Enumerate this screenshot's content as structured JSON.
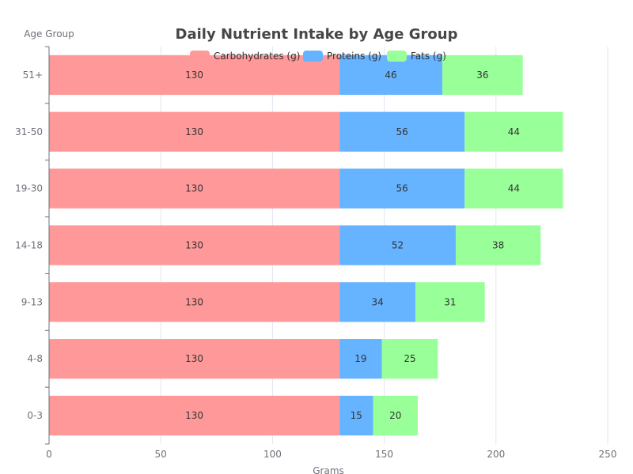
{
  "chart_data": {
    "type": "bar",
    "orientation": "horizontal",
    "stacked": true,
    "title": "Daily Nutrient Intake by Age Group",
    "xlabel": "Grams",
    "ylabel": "Age Group",
    "xlim": [
      0,
      250
    ],
    "xticks": [
      0,
      50,
      100,
      150,
      200,
      250
    ],
    "categories": [
      "0-3",
      "4-8",
      "9-13",
      "14-18",
      "19-30",
      "31-50",
      "51+"
    ],
    "series": [
      {
        "name": "Carbohydrates (g)",
        "color": "#ff9999",
        "values": [
          130,
          130,
          130,
          130,
          130,
          130,
          130
        ]
      },
      {
        "name": "Proteins (g)",
        "color": "#66b3ff",
        "values": [
          15,
          19,
          34,
          52,
          56,
          56,
          46
        ]
      },
      {
        "name": "Fats (g)",
        "color": "#99ff99",
        "values": [
          20,
          25,
          31,
          38,
          44,
          44,
          36
        ]
      }
    ],
    "grid": true,
    "legend_position": "top-center"
  }
}
